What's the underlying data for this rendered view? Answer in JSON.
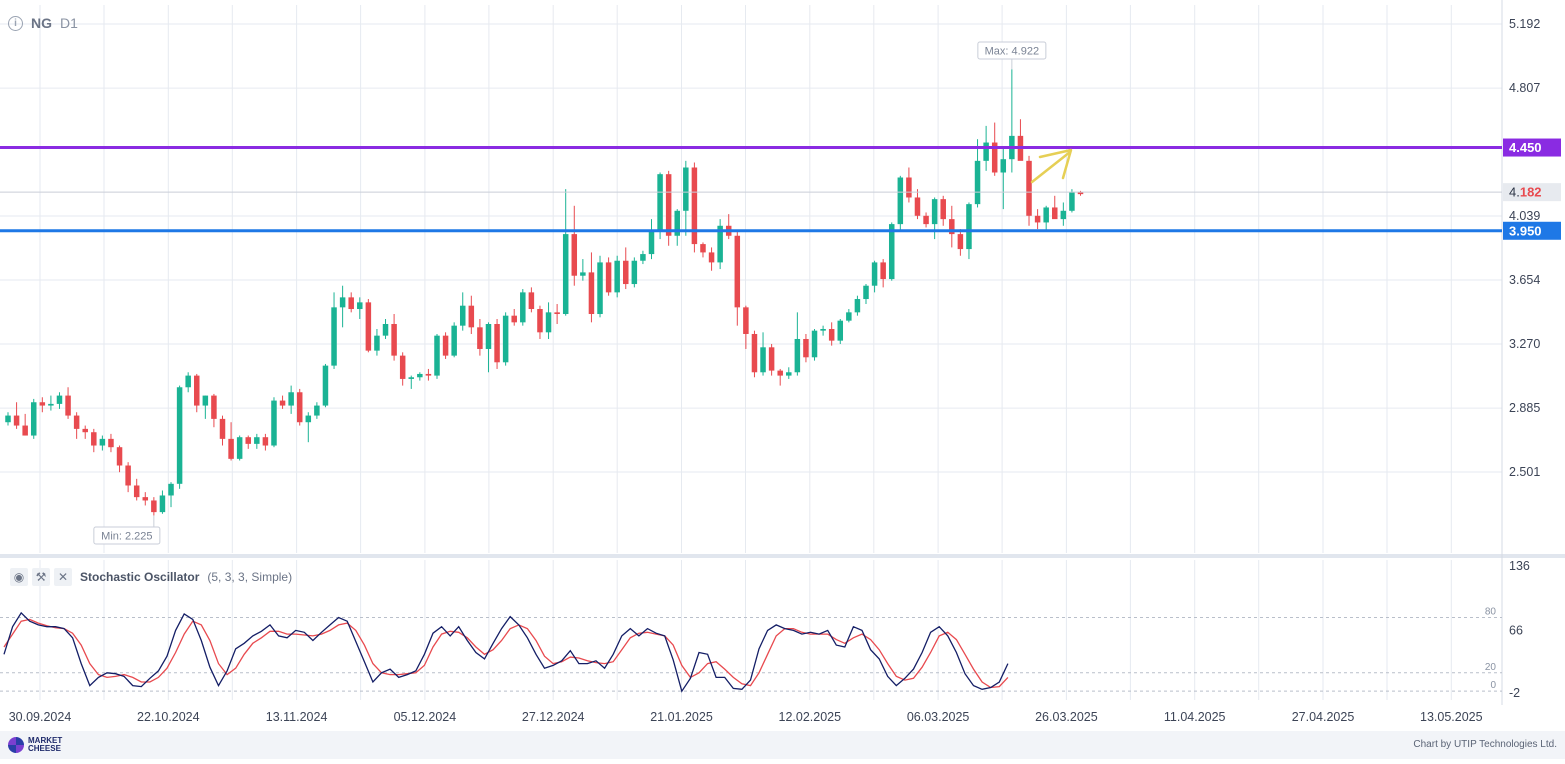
{
  "header": {
    "symbol": "NG",
    "timeframe": "D1"
  },
  "indicator": {
    "name": "Stochastic Oscillator",
    "params": "(5, 3, 3, Simple)"
  },
  "footer": {
    "logo_text": "MARKET CHEESE",
    "credit": "Chart by UTIP Technologies Ltd."
  },
  "colors": {
    "bull": "#1ab394",
    "bear": "#e84a4f",
    "resistance": "#8a2be2",
    "support": "#1e78e6",
    "arrow": "#e6cf55",
    "k_line": "#141e66",
    "d_line": "#e84a4f",
    "grid": "#e6eaf0"
  },
  "chart_data": [
    {
      "type": "candlestick",
      "series": "NG D1",
      "y_ticks": [
        5.192,
        4.807,
        4.039,
        3.654,
        3.27,
        2.885,
        2.501
      ],
      "ylim": [
        2.1,
        5.3
      ],
      "x_ticks": [
        "30.09.2024",
        "22.10.2024",
        "13.11.2024",
        "05.12.2024",
        "27.12.2024",
        "21.01.2025",
        "12.02.2025",
        "06.03.2025",
        "26.03.2025",
        "11.04.2025",
        "27.04.2025",
        "13.05.2025"
      ],
      "levels": [
        {
          "name": "resistance",
          "value": 4.45,
          "label": "4.450"
        },
        {
          "name": "support",
          "value": 3.95,
          "label": "3.950"
        }
      ],
      "current_price": {
        "value": 4.182,
        "label_prefix": "4.",
        "label_suffix": "182"
      },
      "max_label": "Max: 4.922",
      "min_label": "Min: 2.225",
      "ohlc": [
        [
          2.8,
          2.86,
          2.78,
          2.84
        ],
        [
          2.84,
          2.92,
          2.76,
          2.78
        ],
        [
          2.78,
          2.85,
          2.72,
          2.72
        ],
        [
          2.72,
          2.94,
          2.7,
          2.92
        ],
        [
          2.92,
          2.95,
          2.86,
          2.9
        ],
        [
          2.9,
          2.96,
          2.87,
          2.91
        ],
        [
          2.91,
          2.98,
          2.88,
          2.96
        ],
        [
          2.96,
          3.01,
          2.82,
          2.84
        ],
        [
          2.84,
          2.86,
          2.7,
          2.76
        ],
        [
          2.76,
          2.78,
          2.7,
          2.74
        ],
        [
          2.74,
          2.76,
          2.62,
          2.66
        ],
        [
          2.66,
          2.72,
          2.63,
          2.7
        ],
        [
          2.7,
          2.73,
          2.62,
          2.65
        ],
        [
          2.65,
          2.66,
          2.5,
          2.54
        ],
        [
          2.54,
          2.56,
          2.38,
          2.42
        ],
        [
          2.42,
          2.46,
          2.33,
          2.35
        ],
        [
          2.35,
          2.38,
          2.3,
          2.33
        ],
        [
          2.33,
          2.35,
          2.24,
          2.26
        ],
        [
          2.26,
          2.39,
          2.25,
          2.36
        ],
        [
          2.36,
          2.44,
          2.29,
          2.43
        ],
        [
          2.43,
          3.02,
          2.4,
          3.01
        ],
        [
          3.01,
          3.1,
          2.98,
          3.08
        ],
        [
          3.08,
          3.09,
          2.86,
          2.9
        ],
        [
          2.9,
          2.96,
          2.82,
          2.96
        ],
        [
          2.96,
          2.97,
          2.77,
          2.82
        ],
        [
          2.82,
          2.84,
          2.66,
          2.7
        ],
        [
          2.7,
          2.8,
          2.57,
          2.58
        ],
        [
          2.58,
          2.72,
          2.57,
          2.71
        ],
        [
          2.71,
          2.72,
          2.64,
          2.67
        ],
        [
          2.67,
          2.73,
          2.64,
          2.71
        ],
        [
          2.71,
          2.73,
          2.63,
          2.66
        ],
        [
          2.66,
          2.95,
          2.65,
          2.93
        ],
        [
          2.93,
          2.96,
          2.88,
          2.9
        ],
        [
          2.9,
          3.02,
          2.85,
          2.98
        ],
        [
          2.98,
          3.0,
          2.78,
          2.8
        ],
        [
          2.8,
          2.86,
          2.68,
          2.84
        ],
        [
          2.84,
          2.92,
          2.82,
          2.9
        ],
        [
          2.9,
          3.15,
          2.89,
          3.14
        ],
        [
          3.14,
          3.58,
          3.12,
          3.49
        ],
        [
          3.49,
          3.62,
          3.37,
          3.55
        ],
        [
          3.55,
          3.58,
          3.46,
          3.48
        ],
        [
          3.48,
          3.55,
          3.42,
          3.52
        ],
        [
          3.52,
          3.54,
          3.22,
          3.23
        ],
        [
          3.23,
          3.36,
          3.2,
          3.32
        ],
        [
          3.32,
          3.42,
          3.3,
          3.39
        ],
        [
          3.39,
          3.45,
          3.17,
          3.2
        ],
        [
          3.2,
          3.22,
          3.02,
          3.06
        ],
        [
          3.06,
          3.08,
          3.0,
          3.07
        ],
        [
          3.07,
          3.1,
          3.05,
          3.09
        ],
        [
          3.09,
          3.12,
          3.05,
          3.08
        ],
        [
          3.08,
          3.33,
          3.06,
          3.32
        ],
        [
          3.32,
          3.34,
          3.18,
          3.2
        ],
        [
          3.2,
          3.4,
          3.19,
          3.38
        ],
        [
          3.38,
          3.58,
          3.35,
          3.5
        ],
        [
          3.5,
          3.56,
          3.33,
          3.37
        ],
        [
          3.37,
          3.42,
          3.2,
          3.24
        ],
        [
          3.24,
          3.4,
          3.1,
          3.39
        ],
        [
          3.39,
          3.42,
          3.12,
          3.16
        ],
        [
          3.16,
          3.46,
          3.14,
          3.44
        ],
        [
          3.44,
          3.48,
          3.38,
          3.4
        ],
        [
          3.4,
          3.6,
          3.38,
          3.58
        ],
        [
          3.58,
          3.61,
          3.46,
          3.48
        ],
        [
          3.48,
          3.5,
          3.3,
          3.34
        ],
        [
          3.34,
          3.52,
          3.3,
          3.46
        ],
        [
          3.46,
          3.51,
          3.39,
          3.45
        ],
        [
          3.45,
          4.2,
          3.44,
          3.93
        ],
        [
          3.93,
          4.1,
          3.62,
          3.68
        ],
        [
          3.68,
          3.78,
          3.65,
          3.7
        ],
        [
          3.7,
          3.82,
          3.4,
          3.45
        ],
        [
          3.45,
          3.8,
          3.43,
          3.76
        ],
        [
          3.76,
          3.79,
          3.56,
          3.58
        ],
        [
          3.58,
          3.8,
          3.55,
          3.77
        ],
        [
          3.77,
          3.85,
          3.6,
          3.63
        ],
        [
          3.63,
          3.79,
          3.61,
          3.77
        ],
        [
          3.77,
          3.83,
          3.75,
          3.81
        ],
        [
          3.81,
          4.02,
          3.78,
          3.95
        ],
        [
          3.95,
          4.3,
          3.9,
          4.29
        ],
        [
          4.29,
          4.31,
          3.86,
          3.92
        ],
        [
          3.92,
          4.08,
          3.86,
          4.07
        ],
        [
          4.07,
          4.37,
          3.92,
          4.33
        ],
        [
          4.33,
          4.36,
          3.82,
          3.87
        ],
        [
          3.87,
          3.88,
          3.79,
          3.82
        ],
        [
          3.82,
          3.85,
          3.71,
          3.76
        ],
        [
          3.76,
          4.02,
          3.72,
          3.98
        ],
        [
          3.98,
          4.05,
          3.9,
          3.92
        ],
        [
          3.92,
          3.95,
          3.38,
          3.49
        ],
        [
          3.49,
          3.5,
          3.24,
          3.33
        ],
        [
          3.33,
          3.35,
          3.07,
          3.1
        ],
        [
          3.1,
          3.34,
          3.08,
          3.25
        ],
        [
          3.25,
          3.27,
          3.08,
          3.11
        ],
        [
          3.11,
          3.12,
          3.02,
          3.08
        ],
        [
          3.08,
          3.13,
          3.06,
          3.1
        ],
        [
          3.1,
          3.46,
          3.08,
          3.3
        ],
        [
          3.3,
          3.33,
          3.16,
          3.19
        ],
        [
          3.19,
          3.36,
          3.17,
          3.35
        ],
        [
          3.35,
          3.38,
          3.32,
          3.36
        ],
        [
          3.36,
          3.4,
          3.26,
          3.29
        ],
        [
          3.29,
          3.42,
          3.27,
          3.41
        ],
        [
          3.41,
          3.48,
          3.4,
          3.46
        ],
        [
          3.46,
          3.56,
          3.44,
          3.54
        ],
        [
          3.54,
          3.63,
          3.51,
          3.62
        ],
        [
          3.62,
          3.77,
          3.58,
          3.76
        ],
        [
          3.76,
          3.78,
          3.61,
          3.66
        ],
        [
          3.66,
          4.0,
          3.65,
          3.99
        ],
        [
          3.99,
          4.28,
          3.95,
          4.27
        ],
        [
          4.27,
          4.33,
          4.12,
          4.15
        ],
        [
          4.15,
          4.2,
          4.02,
          4.04
        ],
        [
          4.04,
          4.06,
          3.97,
          3.99
        ],
        [
          3.99,
          4.15,
          3.9,
          4.14
        ],
        [
          4.14,
          4.16,
          3.98,
          4.02
        ],
        [
          4.02,
          4.1,
          3.85,
          3.93
        ],
        [
          3.93,
          3.96,
          3.8,
          3.84
        ],
        [
          3.84,
          4.12,
          3.78,
          4.11
        ],
        [
          4.11,
          4.5,
          4.09,
          4.37
        ],
        [
          4.37,
          4.58,
          4.31,
          4.48
        ],
        [
          4.48,
          4.6,
          4.28,
          4.3
        ],
        [
          4.3,
          4.45,
          4.08,
          4.38
        ],
        [
          4.38,
          4.92,
          4.3,
          4.52
        ],
        [
          4.52,
          4.62,
          4.4,
          4.37
        ],
        [
          4.37,
          4.4,
          3.98,
          4.04
        ],
        [
          4.04,
          4.08,
          3.96,
          4.0
        ],
        [
          4.0,
          4.1,
          3.95,
          4.09
        ],
        [
          4.09,
          4.16,
          4.03,
          4.02
        ],
        [
          4.02,
          4.12,
          3.98,
          4.07
        ],
        [
          4.07,
          4.2,
          4.06,
          4.18
        ],
        [
          4.18,
          4.19,
          4.16,
          4.17
        ]
      ]
    },
    {
      "type": "line",
      "series_label": "Stochastic Oscillator (5, 3, 3, Simple)",
      "y_ticks": [
        136,
        66,
        -2
      ],
      "ylim": [
        -2,
        136
      ],
      "levels": [
        80,
        20,
        0
      ],
      "k": [
        40,
        70,
        85,
        76,
        72,
        70,
        70,
        68,
        58,
        30,
        6,
        15,
        20,
        19,
        16,
        6,
        5,
        14,
        22,
        38,
        66,
        84,
        78,
        55,
        26,
        6,
        22,
        46,
        52,
        60,
        65,
        72,
        60,
        58,
        66,
        64,
        55,
        64,
        72,
        80,
        76,
        54,
        32,
        10,
        20,
        24,
        15,
        18,
        22,
        40,
        63,
        70,
        60,
        70,
        55,
        42,
        35,
        52,
        68,
        81,
        72,
        58,
        40,
        25,
        28,
        33,
        44,
        30,
        30,
        33,
        25,
        40,
        60,
        68,
        60,
        68,
        63,
        60,
        34,
        0,
        14,
        42,
        40,
        15,
        15,
        3,
        2,
        12,
        46,
        66,
        72,
        68,
        66,
        62,
        64,
        62,
        66,
        50,
        48,
        70,
        66,
        45,
        35,
        16,
        6,
        14,
        24,
        42,
        64,
        70,
        60,
        42,
        19,
        6,
        2,
        4,
        10,
        30
      ],
      "d": [
        48,
        62,
        76,
        78,
        74,
        71,
        69,
        68,
        63,
        50,
        30,
        18,
        15,
        16,
        18,
        15,
        10,
        10,
        15,
        25,
        42,
        62,
        76,
        72,
        55,
        30,
        18,
        25,
        40,
        52,
        58,
        65,
        65,
        62,
        62,
        61,
        60,
        62,
        66,
        72,
        74,
        66,
        50,
        30,
        20,
        18,
        18,
        19,
        20,
        28,
        48,
        62,
        65,
        64,
        58,
        48,
        40,
        45,
        55,
        68,
        72,
        68,
        55,
        38,
        30,
        32,
        37,
        36,
        33,
        31,
        30,
        32,
        45,
        58,
        63,
        64,
        62,
        60,
        50,
        28,
        15,
        20,
        30,
        32,
        24,
        15,
        8,
        6,
        20,
        40,
        60,
        68,
        68,
        64,
        62,
        62,
        62,
        56,
        52,
        58,
        62,
        56,
        45,
        30,
        16,
        12,
        14,
        26,
        42,
        60,
        64,
        56,
        40,
        24,
        10,
        4,
        5,
        15
      ]
    }
  ]
}
